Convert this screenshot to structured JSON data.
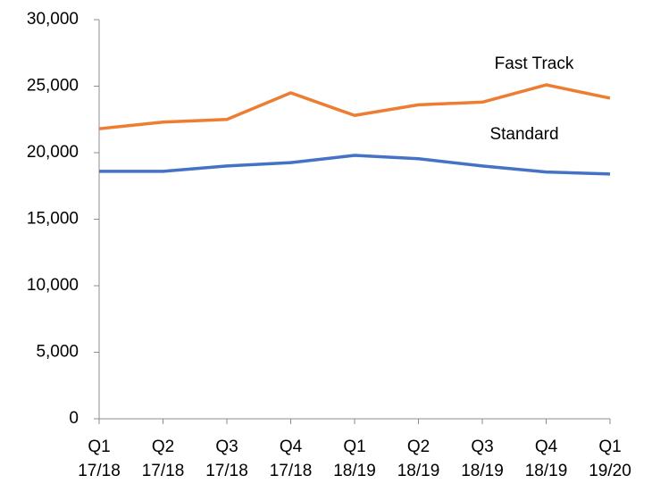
{
  "chart_data": {
    "type": "line",
    "categories": [
      "Q1 17/18",
      "Q2 17/18",
      "Q3 17/18",
      "Q4 17/18",
      "Q1 18/19",
      "Q2 18/19",
      "Q3 18/19",
      "Q4 18/19",
      "Q1 19/20"
    ],
    "series": [
      {
        "name": "Fast Track",
        "color": "#ed7d31",
        "values": [
          21800,
          22300,
          22500,
          24500,
          22800,
          23600,
          23800,
          25100,
          24100
        ]
      },
      {
        "name": "Standard",
        "color": "#4472c4",
        "values": [
          18600,
          18600,
          19000,
          19250,
          19800,
          19550,
          19000,
          18550,
          18400
        ]
      }
    ],
    "ylim": [
      0,
      30000
    ],
    "yticks": [
      0,
      {
        "value": 5000,
        "label": "5,000"
      },
      {
        "value": 10000,
        "label": "10,000"
      },
      {
        "value": 15000,
        "label": "15,000"
      },
      {
        "value": 20000,
        "label": "20,000"
      },
      {
        "value": 25000,
        "label": "25,000"
      },
      {
        "value": 30000,
        "label": "30,000"
      }
    ],
    "grid": false
  }
}
